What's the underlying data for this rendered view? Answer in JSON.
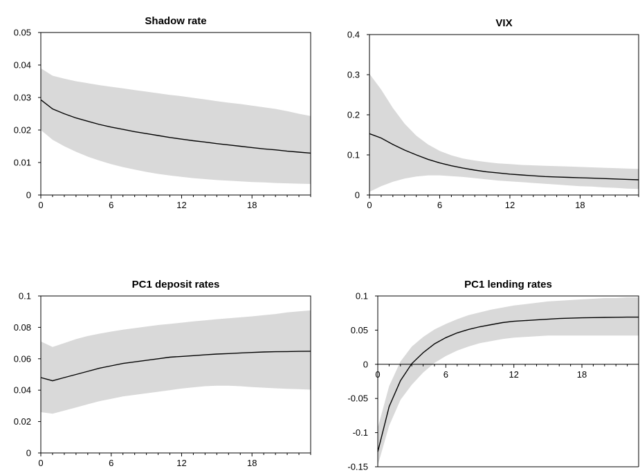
{
  "chart_data": [
    {
      "type": "area",
      "title": "Shadow rate",
      "x": [
        0,
        1,
        2,
        3,
        4,
        5,
        6,
        7,
        8,
        9,
        10,
        11,
        12,
        13,
        14,
        15,
        16,
        17,
        18,
        19,
        20,
        21,
        22,
        23
      ],
      "series": [
        {
          "values": [
            0.0293,
            0.0265,
            0.025,
            0.0237,
            0.0227,
            0.0217,
            0.0209,
            0.0202,
            0.0195,
            0.0189,
            0.0183,
            0.0177,
            0.0172,
            0.0167,
            0.0163,
            0.0158,
            0.0154,
            0.015,
            0.0146,
            0.0142,
            0.0139,
            0.0135,
            0.0132,
            0.0129
          ]
        }
      ],
      "band_lower": [
        0.02,
        0.017,
        0.015,
        0.0133,
        0.0118,
        0.0106,
        0.0095,
        0.0086,
        0.0078,
        0.0071,
        0.0065,
        0.006,
        0.0056,
        0.0052,
        0.0049,
        0.0046,
        0.0044,
        0.0042,
        0.004,
        0.0039,
        0.0037,
        0.0036,
        0.0035,
        0.0034
      ],
      "band_upper": [
        0.039,
        0.0367,
        0.0358,
        0.035,
        0.0344,
        0.0338,
        0.0333,
        0.0328,
        0.0323,
        0.0318,
        0.0313,
        0.0308,
        0.0304,
        0.0299,
        0.0294,
        0.0289,
        0.0284,
        0.028,
        0.0275,
        0.027,
        0.0265,
        0.0258,
        0.025,
        0.0243
      ],
      "ylim": [
        0,
        0.05
      ],
      "yticks": [
        "0",
        "0.01",
        "0.02",
        "0.03",
        "0.04",
        "0.05"
      ],
      "ytick_values": [
        0,
        0.01,
        0.02,
        0.03,
        0.04,
        0.05
      ],
      "xlim": [
        0,
        23
      ],
      "xticks": [
        "0",
        "6",
        "12",
        "18"
      ],
      "xtick_values": [
        0,
        6,
        12,
        18
      ],
      "color_band": "#d9d9d9",
      "color_line": "#000000"
    },
    {
      "type": "area",
      "title": "VIX",
      "x": [
        0,
        1,
        2,
        3,
        4,
        5,
        6,
        7,
        8,
        9,
        10,
        11,
        12,
        13,
        14,
        15,
        16,
        17,
        18,
        19,
        20,
        21,
        22,
        23
      ],
      "series": [
        {
          "values": [
            0.153,
            0.142,
            0.126,
            0.112,
            0.1,
            0.089,
            0.08,
            0.073,
            0.067,
            0.062,
            0.058,
            0.055,
            0.052,
            0.05,
            0.048,
            0.046,
            0.045,
            0.044,
            0.043,
            0.042,
            0.041,
            0.04,
            0.039,
            0.038
          ]
        }
      ],
      "band_lower": [
        0.008,
        0.022,
        0.033,
        0.041,
        0.046,
        0.049,
        0.049,
        0.047,
        0.045,
        0.042,
        0.039,
        0.036,
        0.034,
        0.032,
        0.03,
        0.028,
        0.026,
        0.024,
        0.022,
        0.021,
        0.019,
        0.018,
        0.016,
        0.015
      ],
      "band_upper": [
        0.302,
        0.263,
        0.217,
        0.178,
        0.148,
        0.126,
        0.11,
        0.099,
        0.091,
        0.086,
        0.082,
        0.079,
        0.077,
        0.075,
        0.074,
        0.073,
        0.072,
        0.071,
        0.07,
        0.069,
        0.068,
        0.067,
        0.066,
        0.065
      ],
      "ylim": [
        0,
        0.4
      ],
      "yticks": [
        "0",
        "0.1",
        "0.2",
        "0.3",
        "0.4"
      ],
      "ytick_values": [
        0,
        0.1,
        0.2,
        0.3,
        0.4
      ],
      "xlim": [
        0,
        23
      ],
      "xticks": [
        "0",
        "6",
        "12",
        "18"
      ],
      "xtick_values": [
        0,
        6,
        12,
        18
      ],
      "color_band": "#d9d9d9",
      "color_line": "#000000"
    },
    {
      "type": "area",
      "title": "PC1 deposit rates",
      "x": [
        0,
        1,
        2,
        3,
        4,
        5,
        6,
        7,
        8,
        9,
        10,
        11,
        12,
        13,
        14,
        15,
        16,
        17,
        18,
        19,
        20,
        21,
        22,
        23
      ],
      "series": [
        {
          "values": [
            0.048,
            0.046,
            0.048,
            0.05,
            0.052,
            0.054,
            0.0555,
            0.057,
            0.058,
            0.059,
            0.06,
            0.061,
            0.0615,
            0.062,
            0.0625,
            0.063,
            0.0633,
            0.0637,
            0.064,
            0.0643,
            0.0645,
            0.0646,
            0.0647,
            0.0648
          ]
        }
      ],
      "band_lower": [
        0.026,
        0.025,
        0.027,
        0.029,
        0.031,
        0.033,
        0.0345,
        0.036,
        0.037,
        0.038,
        0.039,
        0.04,
        0.041,
        0.0418,
        0.0425,
        0.0428,
        0.0428,
        0.0425,
        0.042,
        0.0416,
        0.0412,
        0.0409,
        0.0406,
        0.0403
      ],
      "band_upper": [
        0.071,
        0.0675,
        0.07,
        0.0725,
        0.0745,
        0.076,
        0.0773,
        0.0785,
        0.0795,
        0.0805,
        0.0815,
        0.0822,
        0.083,
        0.0838,
        0.0845,
        0.0852,
        0.0858,
        0.0864,
        0.087,
        0.0878,
        0.0885,
        0.0895,
        0.0902,
        0.0908
      ],
      "ylim": [
        0,
        0.1
      ],
      "yticks": [
        "0",
        "0.02",
        "0.04",
        "0.06",
        "0.08",
        "0.1"
      ],
      "ytick_values": [
        0,
        0.02,
        0.04,
        0.06,
        0.08,
        0.1
      ],
      "xlim": [
        0,
        23
      ],
      "xticks": [
        "0",
        "6",
        "12",
        "18"
      ],
      "xtick_values": [
        0,
        6,
        12,
        18
      ],
      "color_band": "#d9d9d9",
      "color_line": "#000000"
    },
    {
      "type": "area",
      "title": "PC1 lending rates",
      "x": [
        0,
        1,
        2,
        3,
        4,
        5,
        6,
        7,
        8,
        9,
        10,
        11,
        12,
        13,
        14,
        15,
        16,
        17,
        18,
        19,
        20,
        21,
        22,
        23
      ],
      "series": [
        {
          "values": [
            -0.128,
            -0.062,
            -0.024,
            0.001,
            0.017,
            0.03,
            0.039,
            0.046,
            0.051,
            0.055,
            0.058,
            0.061,
            0.063,
            0.064,
            0.065,
            0.066,
            0.067,
            0.0675,
            0.068,
            0.0683,
            0.0686,
            0.0688,
            0.069,
            0.069
          ]
        }
      ],
      "band_lower": [
        -0.148,
        -0.09,
        -0.052,
        -0.03,
        -0.012,
        0.002,
        0.012,
        0.02,
        0.026,
        0.031,
        0.034,
        0.037,
        0.039,
        0.04,
        0.041,
        0.042,
        0.042,
        0.042,
        0.042,
        0.042,
        0.042,
        0.042,
        0.042,
        0.042
      ],
      "band_upper": [
        -0.093,
        -0.032,
        0.004,
        0.026,
        0.04,
        0.051,
        0.059,
        0.066,
        0.072,
        0.076,
        0.08,
        0.083,
        0.086,
        0.088,
        0.09,
        0.092,
        0.093,
        0.094,
        0.095,
        0.096,
        0.097,
        0.097,
        0.098,
        0.098
      ],
      "ylim": [
        -0.15,
        0.1
      ],
      "yticks": [
        "-0.15",
        "-0.1",
        "-0.05",
        "0",
        "0.05",
        "0.1"
      ],
      "ytick_values": [
        -0.15,
        -0.1,
        -0.05,
        0,
        0.05,
        0.1
      ],
      "xlim": [
        0,
        23
      ],
      "xticks": [
        "0",
        "6",
        "12",
        "18"
      ],
      "xtick_values": [
        0,
        6,
        12,
        18
      ],
      "color_band": "#d9d9d9",
      "color_line": "#000000"
    }
  ]
}
